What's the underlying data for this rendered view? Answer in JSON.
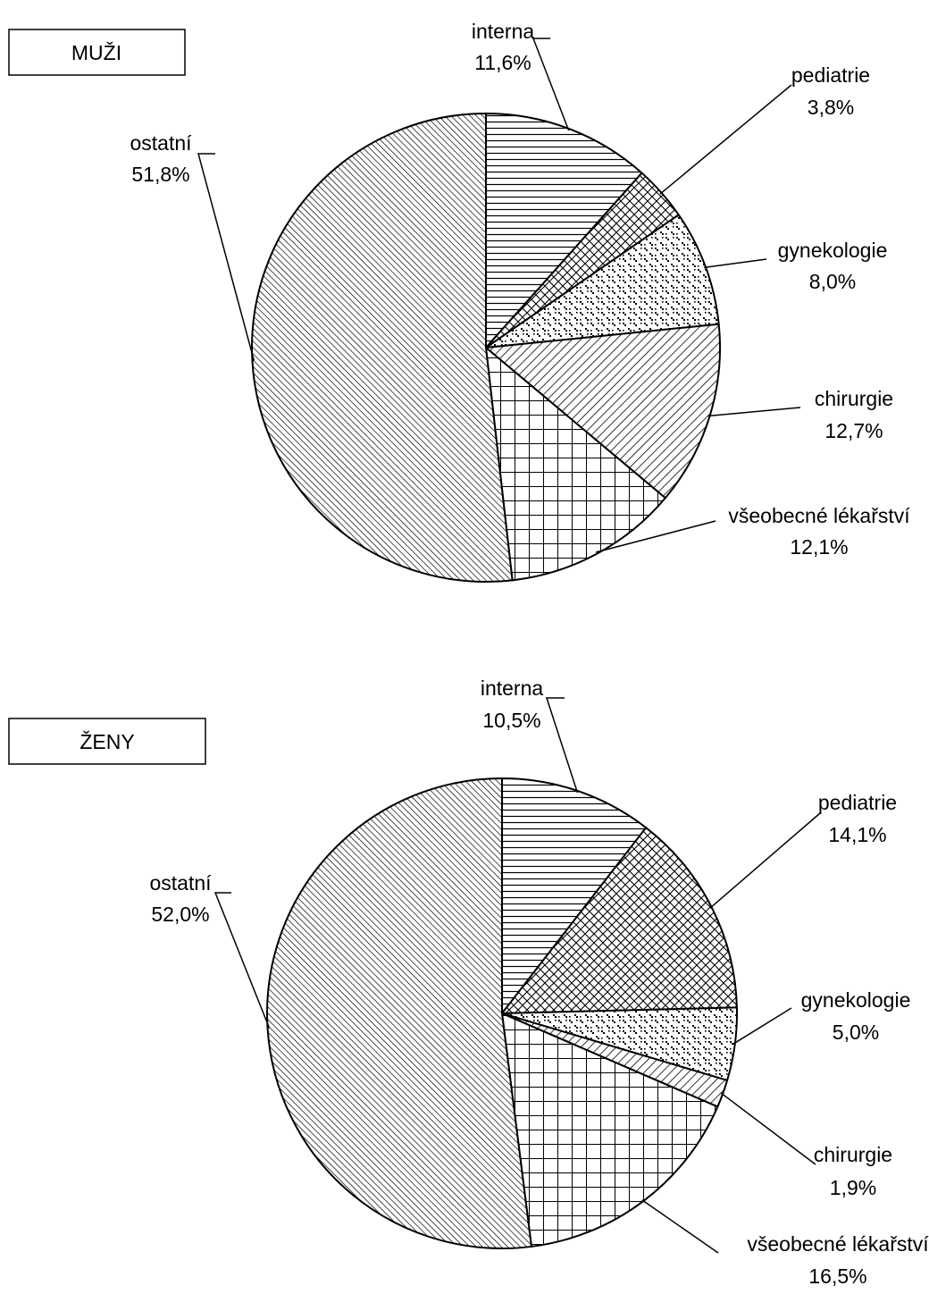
{
  "chart_data": [
    {
      "type": "pie",
      "title": "MUŽI",
      "slices": [
        {
          "label": "interna",
          "value": 11.6,
          "value_label": "11,6%",
          "pattern": "horizontal-lines"
        },
        {
          "label": "pediatrie",
          "value": 3.8,
          "value_label": "3,8%",
          "pattern": "diagonal-crosshatch"
        },
        {
          "label": "gynekologie",
          "value": 8.0,
          "value_label": "8,0%",
          "pattern": "dotted"
        },
        {
          "label": "chirurgie",
          "value": 12.7,
          "value_label": "12,7%",
          "pattern": "diagonal-lines-wide"
        },
        {
          "label": "všeobecné lékařství",
          "value": 12.1,
          "value_label": "12,1%",
          "pattern": "grid"
        },
        {
          "label": "ostatní",
          "value": 51.8,
          "value_label": "51,8%",
          "pattern": "diagonal-lines-dense"
        }
      ]
    },
    {
      "type": "pie",
      "title": "ŽENY",
      "slices": [
        {
          "label": "interna",
          "value": 10.5,
          "value_label": "10,5%",
          "pattern": "horizontal-lines"
        },
        {
          "label": "pediatrie",
          "value": 14.1,
          "value_label": "14,1%",
          "pattern": "diagonal-crosshatch"
        },
        {
          "label": "gynekologie",
          "value": 5.0,
          "value_label": "5,0%",
          "pattern": "dotted"
        },
        {
          "label": "chirurgie",
          "value": 1.9,
          "value_label": "1,9%",
          "pattern": "diagonal-lines-wide"
        },
        {
          "label": "všeobecné lékařství",
          "value": 16.5,
          "value_label": "16,5%",
          "pattern": "grid"
        },
        {
          "label": "ostatní",
          "value": 52.0,
          "value_label": "52,0%",
          "pattern": "diagonal-lines-dense"
        }
      ]
    }
  ]
}
